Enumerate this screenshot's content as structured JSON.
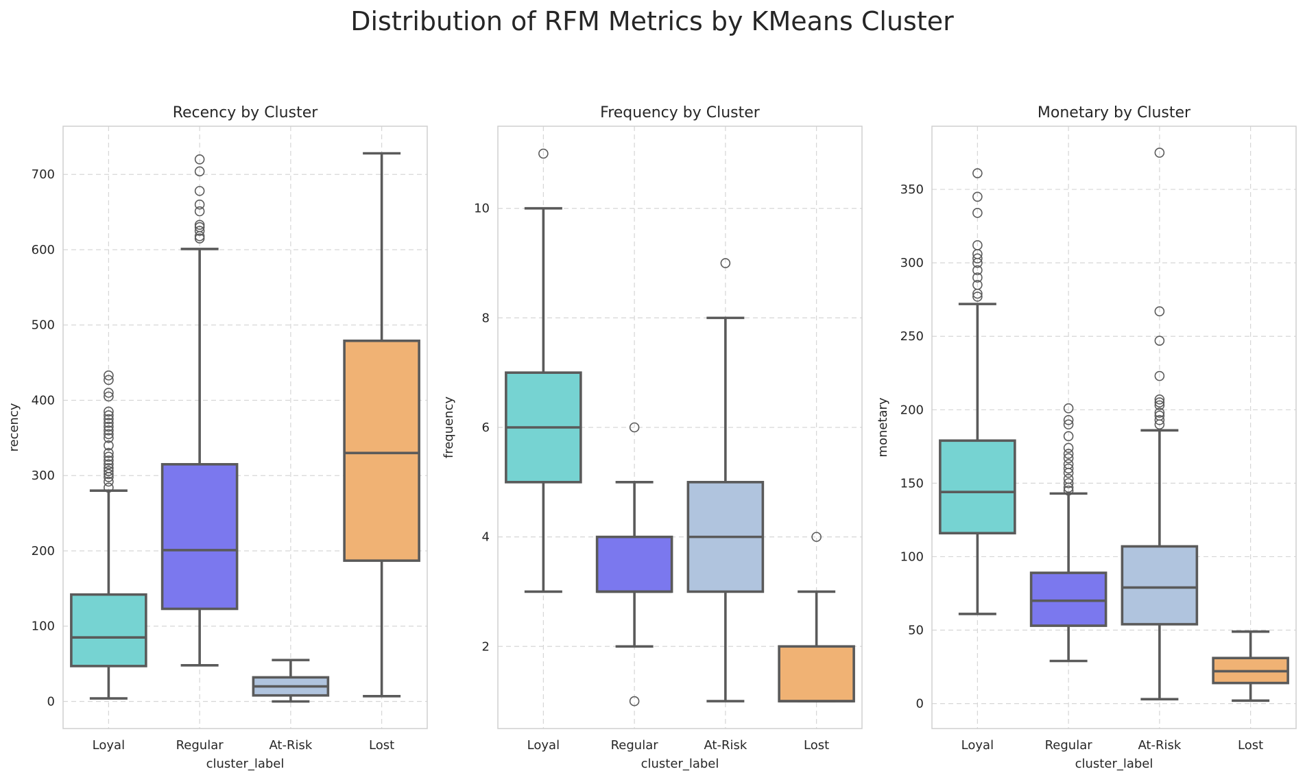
{
  "chart_data": {
    "title": "Distribution of RFM Metrics by KMeans Cluster",
    "type": "box",
    "categories": [
      "Loyal",
      "Regular",
      "At-Risk",
      "Lost"
    ],
    "colors": [
      "#76d3d2",
      "#7b78ee",
      "#b0c4de",
      "#f0b274"
    ],
    "edge_color": "#5a5a5a",
    "grid": true,
    "panels": [
      {
        "title": "Recency by Cluster",
        "xlabel": "cluster_label",
        "ylabel": "recency",
        "ylim": [
          -36,
          764
        ],
        "yticks": [
          0,
          100,
          200,
          300,
          400,
          500,
          600,
          700
        ],
        "boxes": [
          {
            "category": "Loyal",
            "whislo": 4,
            "q1": 47,
            "med": 85,
            "q3": 142,
            "whishi": 280,
            "fliers": [
              284,
              292,
              298,
              302,
              306,
              310,
              315,
              320,
              325,
              330,
              340,
              350,
              355,
              360,
              365,
              370,
              375,
              380,
              385,
              405,
              410,
              427,
              433
            ]
          },
          {
            "category": "Regular",
            "whislo": 48,
            "q1": 123,
            "med": 201,
            "q3": 315,
            "whishi": 601,
            "fliers": [
              615,
              618,
              625,
              630,
              633,
              651,
              660,
              678,
              704,
              720
            ]
          },
          {
            "category": "At-Risk",
            "whislo": 0,
            "q1": 8,
            "med": 20,
            "q3": 32,
            "whishi": 55,
            "fliers": []
          },
          {
            "category": "Lost",
            "whislo": 7,
            "q1": 187,
            "med": 330,
            "q3": 479,
            "whishi": 728,
            "fliers": []
          }
        ]
      },
      {
        "title": "Frequency by Cluster",
        "xlabel": "cluster_label",
        "ylabel": "frequency",
        "ylim": [
          0.5,
          11.5
        ],
        "yticks": [
          2,
          4,
          6,
          8,
          10
        ],
        "boxes": [
          {
            "category": "Loyal",
            "whislo": 3,
            "q1": 5,
            "med": 6,
            "q3": 7,
            "whishi": 10,
            "fliers": [
              11
            ]
          },
          {
            "category": "Regular",
            "whislo": 2,
            "q1": 3,
            "med": 3,
            "q3": 4,
            "whishi": 5,
            "fliers": [
              1,
              6
            ]
          },
          {
            "category": "At-Risk",
            "whislo": 1,
            "q1": 3,
            "med": 4,
            "q3": 5,
            "whishi": 8,
            "fliers": [
              9
            ]
          },
          {
            "category": "Lost",
            "whislo": 1,
            "q1": 1,
            "med": 1,
            "q3": 2,
            "whishi": 3,
            "fliers": [
              4
            ]
          }
        ]
      },
      {
        "title": "Monetary by Cluster",
        "xlabel": "cluster_label",
        "ylabel": "monetary",
        "ylim": [
          -17,
          393
        ],
        "yticks": [
          0,
          50,
          100,
          150,
          200,
          250,
          300,
          350
        ],
        "boxes": [
          {
            "category": "Loyal",
            "whislo": 61,
            "q1": 116,
            "med": 144,
            "q3": 179,
            "whishi": 272,
            "fliers": [
              277,
              279,
              285,
              290,
              295,
              300,
              303,
              306,
              312,
              334,
              345,
              361
            ]
          },
          {
            "category": "Regular",
            "whislo": 29,
            "q1": 53,
            "med": 70,
            "q3": 89,
            "whishi": 143,
            "fliers": [
              145,
              147,
              150,
              153,
              157,
              160,
              163,
              167,
              170,
              174,
              182,
              190,
              193,
              201
            ]
          },
          {
            "category": "At-Risk",
            "whislo": 3,
            "q1": 54,
            "med": 79,
            "q3": 107,
            "whishi": 186,
            "fliers": [
              190,
              193,
              196,
              198,
              203,
              205,
              207,
              223,
              247,
              267,
              375
            ]
          },
          {
            "category": "Lost",
            "whislo": 2,
            "q1": 14,
            "med": 22,
            "q3": 31,
            "whishi": 49,
            "fliers": []
          }
        ]
      }
    ]
  }
}
